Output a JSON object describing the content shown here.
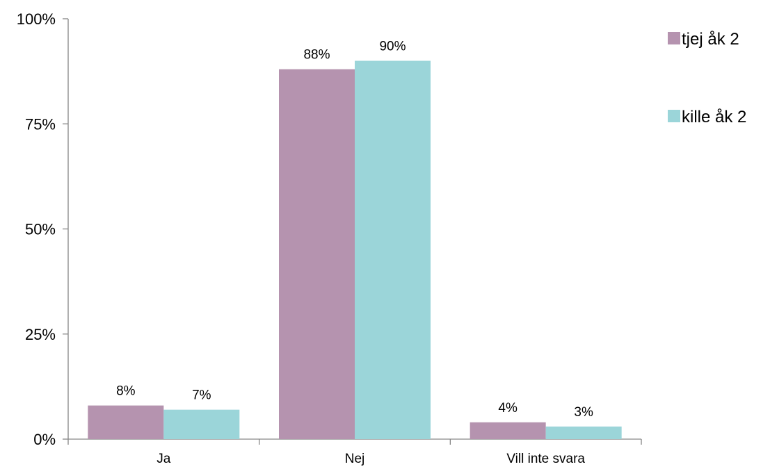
{
  "chart_data": {
    "type": "bar",
    "categories": [
      "Ja",
      "Nej",
      "Vill inte svara"
    ],
    "series": [
      {
        "name": "tjej åk 2",
        "values": [
          8,
          88,
          4
        ],
        "labels": [
          "8%",
          "88%",
          "4%"
        ],
        "color": "#B593AF"
      },
      {
        "name": "kille åk 2",
        "values": [
          7,
          90,
          3
        ],
        "labels": [
          "7%",
          "90%",
          "3%"
        ],
        "color": "#9BD5D9"
      }
    ],
    "y_ticks": [
      {
        "value": 0,
        "label": "0%"
      },
      {
        "value": 25,
        "label": "25%"
      },
      {
        "value": 50,
        "label": "50%"
      },
      {
        "value": 75,
        "label": "75%"
      },
      {
        "value": 100,
        "label": "100%"
      }
    ],
    "ylim": [
      0,
      100
    ],
    "grid": false,
    "legend": "right",
    "axis_color": "#868686"
  }
}
